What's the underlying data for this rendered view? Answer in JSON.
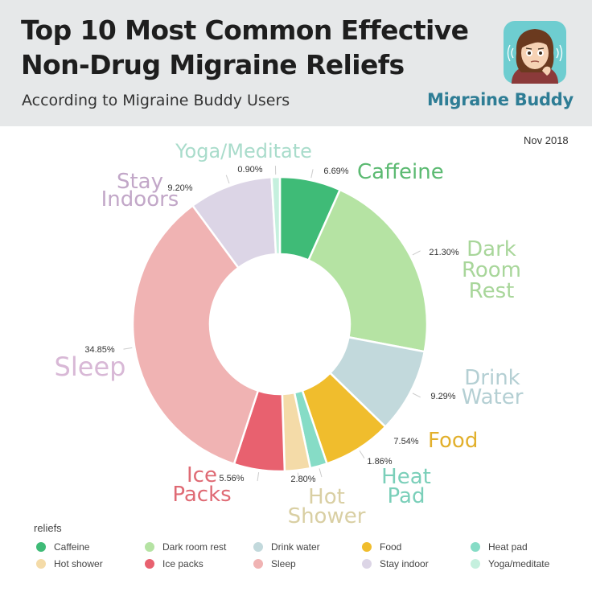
{
  "header": {
    "title_line1": "Top 10 Most Common Effective",
    "title_line2": "Non-Drug Migraine Reliefs",
    "subtitle": "According to Migraine Buddy Users",
    "brand": "Migraine Buddy",
    "avatar_icon": "cartoon-woman-migraine-icon"
  },
  "date": "Nov 2018",
  "chart_data": {
    "type": "pie",
    "donut": true,
    "legend_title": "reliefs",
    "legend_placement": "bottom",
    "series": [
      {
        "name": "Caffeine",
        "value": 6.69,
        "pct_label": "6.69%",
        "label_lines": [
          "Caffeine"
        ],
        "color": "#3fbb77",
        "label_color": "#5cba72"
      },
      {
        "name": "Dark room rest",
        "value": 21.3,
        "pct_label": "21.30%",
        "label_lines": [
          "Dark",
          "Room",
          "Rest"
        ],
        "color": "#b5e3a3",
        "label_color": "#a8d69a"
      },
      {
        "name": "Drink water",
        "value": 9.29,
        "pct_label": "9.29%",
        "label_lines": [
          "Drink",
          "Water"
        ],
        "color": "#c2d9dc",
        "label_color": "#b4cfd3"
      },
      {
        "name": "Food",
        "value": 7.54,
        "pct_label": "7.54%",
        "label_lines": [
          "Food"
        ],
        "color": "#f0bd2d",
        "label_color": "#e2b02c"
      },
      {
        "name": "Heat pad",
        "value": 1.86,
        "pct_label": "1.86%",
        "label_lines": [
          "Heat",
          "Pad"
        ],
        "color": "#86dcc6",
        "label_color": "#7acfb9"
      },
      {
        "name": "Hot shower",
        "value": 2.8,
        "pct_label": "2.80%",
        "label_lines": [
          "Hot",
          "Shower"
        ],
        "color": "#f4dba8",
        "label_color": "#d9cfa3"
      },
      {
        "name": "Ice packs",
        "value": 5.56,
        "pct_label": "5.56%",
        "label_lines": [
          "Ice",
          "Packs"
        ],
        "color": "#e8616f",
        "label_color": "#df6a74"
      },
      {
        "name": "Sleep",
        "value": 34.85,
        "pct_label": "34.85%",
        "label_lines": [
          "Sleep"
        ],
        "color": "#f0b3b3",
        "label_color": "#d8b8d6"
      },
      {
        "name": "Stay indoor",
        "value": 9.2,
        "pct_label": "9.20%",
        "label_lines": [
          "Stay",
          "Indoors"
        ],
        "color": "#dcd5e6",
        "label_color": "#c2a7c8"
      },
      {
        "name": "Yoga/meditate",
        "value": 0.9,
        "pct_label": "0.90%",
        "label_lines": [
          "Yoga/Meditate"
        ],
        "color": "#c5f0de",
        "label_color": "#a9dccb"
      }
    ]
  }
}
